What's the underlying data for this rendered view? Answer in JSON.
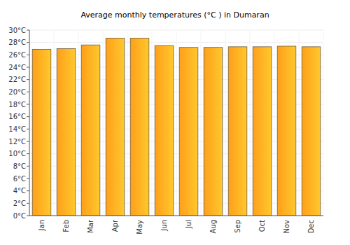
{
  "chart_data": {
    "type": "bar",
    "title": "Average monthly temperatures (°C ) in Dumaran",
    "categories": [
      "Jan",
      "Feb",
      "Mar",
      "Apr",
      "May",
      "Jun",
      "Jul",
      "Aug",
      "Sep",
      "Oct",
      "Nov",
      "Dec"
    ],
    "values": [
      26.9,
      27.0,
      27.6,
      28.7,
      28.7,
      27.5,
      27.2,
      27.2,
      27.3,
      27.3,
      27.4,
      27.3
    ],
    "color": "#ff9f1a",
    "ylim": [
      0,
      30
    ],
    "yticks": [
      {
        "value": 0,
        "label": "0°C"
      },
      {
        "value": 2,
        "label": "2°C"
      },
      {
        "value": 4,
        "label": "4°C"
      },
      {
        "value": 6,
        "label": "6°C"
      },
      {
        "value": 8,
        "label": "8°C"
      },
      {
        "value": 10,
        "label": "10°C"
      },
      {
        "value": 12,
        "label": "12°C"
      },
      {
        "value": 14,
        "label": "14°C"
      },
      {
        "value": 16,
        "label": "16°C"
      },
      {
        "value": 18,
        "label": "18°C"
      },
      {
        "value": 20,
        "label": "20°C"
      },
      {
        "value": 22,
        "label": "22°C"
      },
      {
        "value": 24,
        "label": "24°C"
      },
      {
        "value": 26,
        "label": "26°C"
      },
      {
        "value": 28,
        "label": "28°C"
      },
      {
        "value": 30,
        "label": "30°C"
      }
    ],
    "grid": true
  }
}
